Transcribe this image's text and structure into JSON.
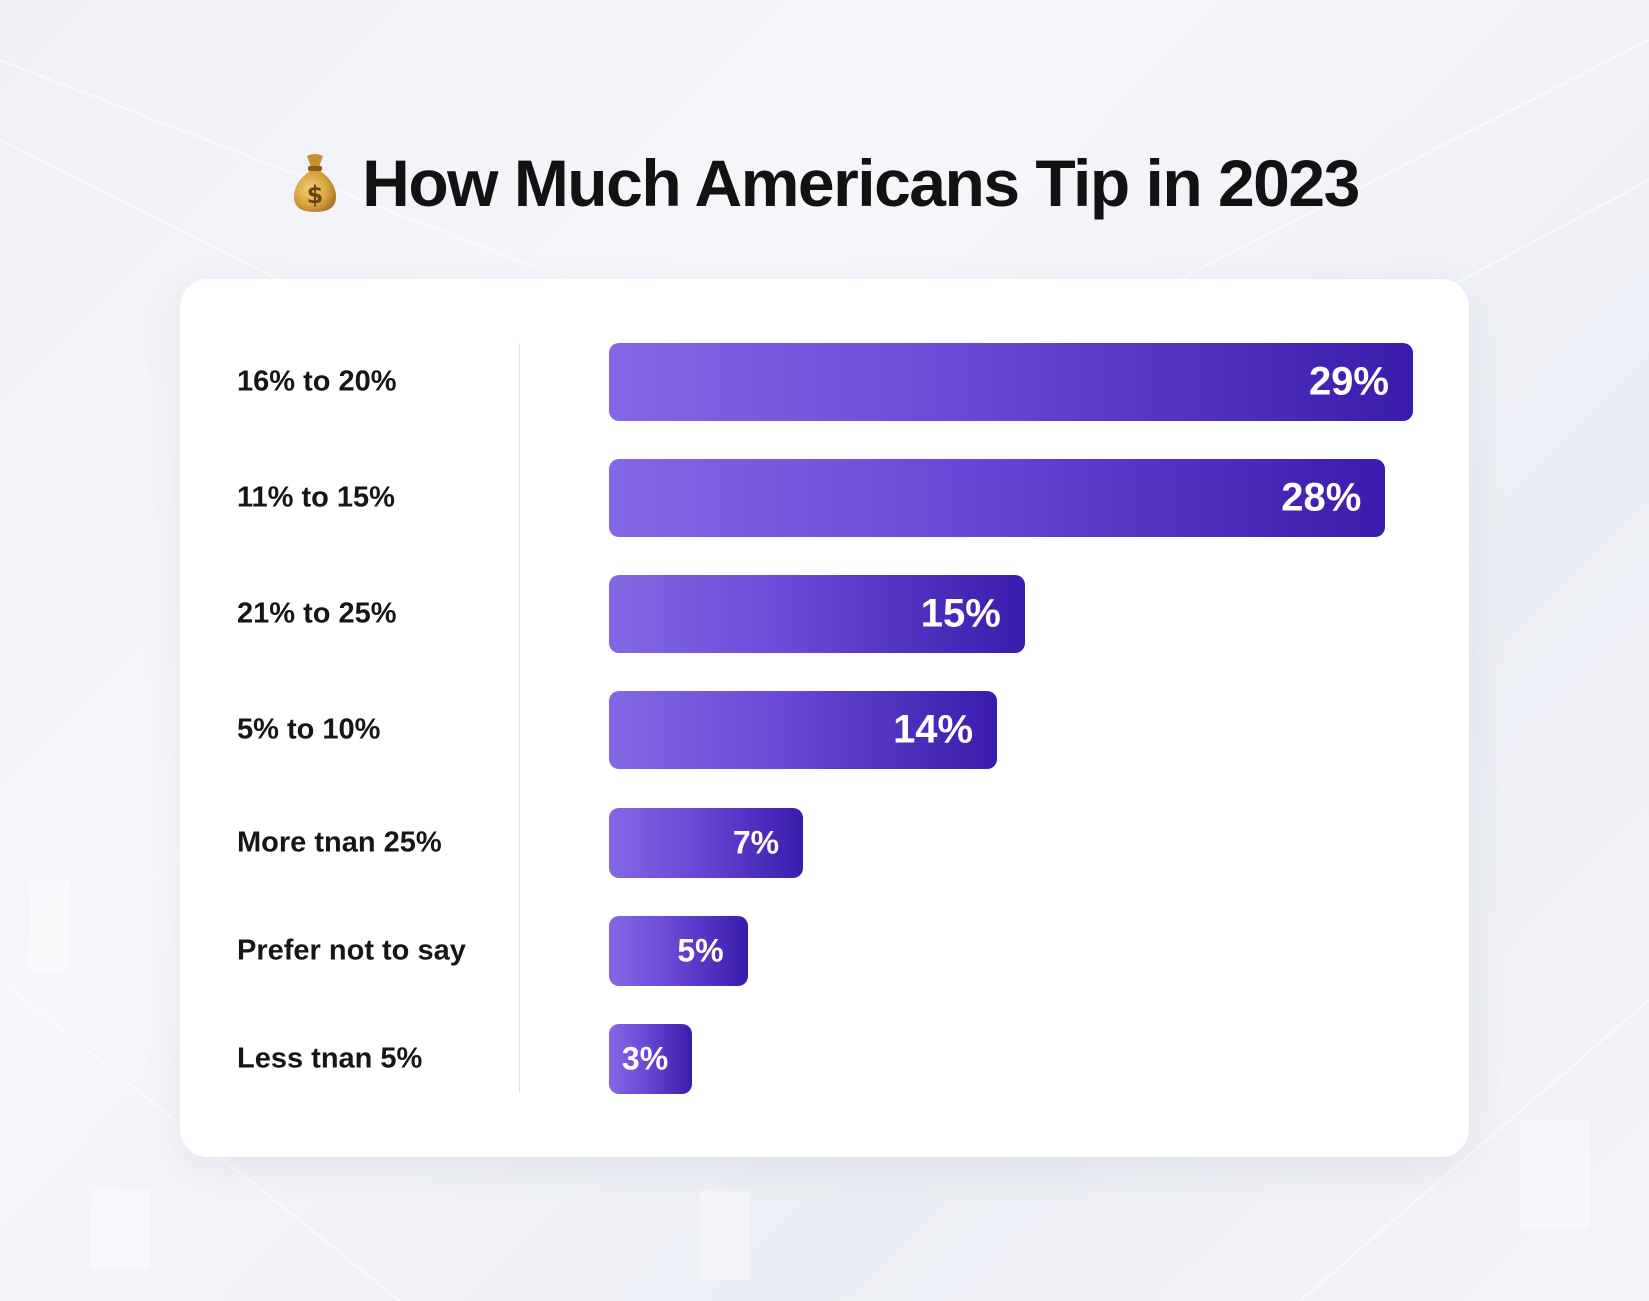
{
  "title": "How Much Americans Tip in 2023",
  "title_icon": "money-bag-icon",
  "colors": {
    "bar_start": "#8467e4",
    "bar_end": "#3a1bab",
    "label_text": "#15151a",
    "value_text": "#ffffff",
    "card_background": "#ffffff"
  },
  "chart_data": {
    "type": "bar",
    "orientation": "horizontal",
    "categories": [
      "16% to 20%",
      "11% to 15%",
      "21% to 25%",
      "5% to 10%",
      "More tnan 25%",
      "Prefer not to say",
      "Less tnan 5%"
    ],
    "values": [
      29,
      28,
      15,
      14,
      7,
      5,
      3
    ],
    "value_labels": [
      "29%",
      "28%",
      "15%",
      "14%",
      "7%",
      "5%",
      "3%"
    ],
    "title": "How Much Americans Tip in 2023",
    "xlabel": "",
    "ylabel": "",
    "grid": false,
    "legend": "none"
  }
}
